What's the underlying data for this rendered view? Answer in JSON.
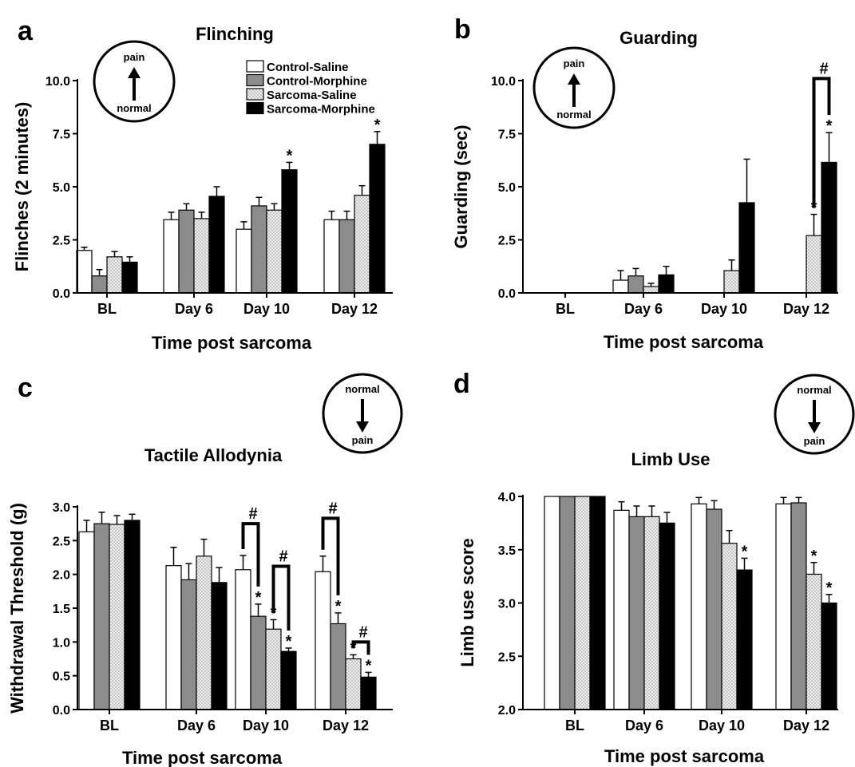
{
  "legend": {
    "position": "top-right of panel a",
    "entries": [
      "Control-Saline",
      "Control-Morphine",
      "Sarcoma-Saline",
      "Sarcoma-Morphine"
    ]
  },
  "series_styles": [
    {
      "name": "Control-Saline",
      "fill": "#ffffff",
      "pattern": "none"
    },
    {
      "name": "Control-Morphine",
      "fill": "#8c8c8c",
      "pattern": "none"
    },
    {
      "name": "Sarcoma-Saline",
      "fill": "#e0e0e0",
      "pattern": "dots"
    },
    {
      "name": "Sarcoma-Morphine",
      "fill": "#000000",
      "pattern": "none"
    }
  ],
  "chart_data": [
    {
      "panel": "a",
      "type": "bar",
      "title": "Flinching",
      "xlabel": "Time post sarcoma",
      "ylabel": "Flinches (2 minutes)",
      "categories": [
        "BL",
        "Day 6",
        "Day 10",
        "Day 12"
      ],
      "ylim": [
        0,
        10
      ],
      "yticks": [
        "0.0",
        "2.5",
        "5.0",
        "7.5",
        "10.0"
      ],
      "ytick_values": [
        0,
        2.5,
        5,
        7.5,
        10
      ],
      "grid": false,
      "indicator": {
        "top": "pain",
        "bottom": "normal",
        "arrow": "up"
      },
      "series": [
        {
          "name": "Control-Saline",
          "values": [
            2.0,
            3.45,
            3.0,
            3.45
          ],
          "errors": [
            0.15,
            0.35,
            0.35,
            0.4
          ]
        },
        {
          "name": "Control-Morphine",
          "values": [
            0.8,
            3.9,
            4.1,
            3.45
          ],
          "errors": [
            0.3,
            0.3,
            0.4,
            0.4
          ]
        },
        {
          "name": "Sarcoma-Saline",
          "values": [
            1.7,
            3.5,
            3.9,
            4.6
          ],
          "errors": [
            0.25,
            0.3,
            0.3,
            0.45
          ]
        },
        {
          "name": "Sarcoma-Morphine",
          "values": [
            1.45,
            4.55,
            5.8,
            7.0
          ],
          "errors": [
            0.25,
            0.45,
            0.35,
            0.6
          ]
        }
      ],
      "annotations": [
        {
          "text": "*",
          "category": 2,
          "series": 3
        },
        {
          "text": "*",
          "category": 3,
          "series": 3
        }
      ],
      "brackets": []
    },
    {
      "panel": "b",
      "type": "bar",
      "title": "Guarding",
      "xlabel": "Time post sarcoma",
      "ylabel": "Guarding (sec)",
      "categories": [
        "BL",
        "Day 6",
        "Day 10",
        "Day 12"
      ],
      "ylim": [
        0,
        10
      ],
      "yticks": [
        "0.0",
        "2.5",
        "5.0",
        "7.5",
        "10.0"
      ],
      "ytick_values": [
        0,
        2.5,
        5,
        7.5,
        10
      ],
      "grid": false,
      "indicator": {
        "top": "pain",
        "bottom": "normal",
        "arrow": "up"
      },
      "series": [
        {
          "name": "Control-Saline",
          "values": [
            0,
            0.6,
            0,
            0
          ],
          "errors": [
            0,
            0.45,
            0,
            0
          ]
        },
        {
          "name": "Control-Morphine",
          "values": [
            0,
            0.8,
            0,
            0
          ],
          "errors": [
            0,
            0.35,
            0,
            0
          ]
        },
        {
          "name": "Sarcoma-Saline",
          "values": [
            0,
            0.3,
            1.05,
            2.7
          ],
          "errors": [
            0,
            0.15,
            0.5,
            1.0
          ]
        },
        {
          "name": "Sarcoma-Morphine",
          "values": [
            0,
            0.85,
            4.25,
            6.15
          ],
          "errors": [
            0,
            0.4,
            2.05,
            1.4
          ]
        }
      ],
      "annotations": [
        {
          "text": "*",
          "category": 3,
          "series": 2
        },
        {
          "text": "*",
          "category": 3,
          "series": 3
        }
      ],
      "brackets": [
        {
          "category": 3,
          "from_series": 2,
          "to_series": 3,
          "level": 10.1,
          "text": "#"
        }
      ]
    },
    {
      "panel": "c",
      "type": "bar",
      "title": "Tactile Allodynia",
      "xlabel": "Time post sarcoma",
      "ylabel": "Withdrawal Threshold  (g)",
      "categories": [
        "BL",
        "Day 6",
        "Day 10",
        "Day 12"
      ],
      "ylim": [
        0,
        3
      ],
      "yticks": [
        "0.0",
        "0.5",
        "1.0",
        "1.5",
        "2.0",
        "2.5",
        "3.0"
      ],
      "ytick_values": [
        0,
        0.5,
        1,
        1.5,
        2,
        2.5,
        3
      ],
      "grid": false,
      "indicator": {
        "top": "normal",
        "bottom": "pain",
        "arrow": "down"
      },
      "series": [
        {
          "name": "Control-Saline",
          "values": [
            2.63,
            2.13,
            2.07,
            2.04
          ],
          "errors": [
            0.17,
            0.27,
            0.21,
            0.23
          ]
        },
        {
          "name": "Control-Morphine",
          "values": [
            2.75,
            1.92,
            1.38,
            1.27
          ],
          "errors": [
            0.17,
            0.24,
            0.18,
            0.16
          ]
        },
        {
          "name": "Sarcoma-Saline",
          "values": [
            2.74,
            2.27,
            1.19,
            0.75
          ],
          "errors": [
            0.13,
            0.25,
            0.14,
            0.06
          ]
        },
        {
          "name": "Sarcoma-Morphine",
          "values": [
            2.8,
            1.88,
            0.86,
            0.48
          ],
          "errors": [
            0.09,
            0.22,
            0.05,
            0.07
          ]
        }
      ],
      "annotations": [
        {
          "text": "*",
          "category": 2,
          "series": 1
        },
        {
          "text": "*",
          "category": 2,
          "series": 2
        },
        {
          "text": "*",
          "category": 2,
          "series": 3
        },
        {
          "text": "*",
          "category": 3,
          "series": 1
        },
        {
          "text": "*",
          "category": 3,
          "series": 2
        },
        {
          "text": "*",
          "category": 3,
          "series": 3
        }
      ],
      "brackets": [
        {
          "category": 2,
          "from_series": 0,
          "to_series": 1,
          "level": 2.75,
          "text": "#"
        },
        {
          "category": 2,
          "from_series": 2,
          "to_series": 3,
          "level": 2.12,
          "text": "#"
        },
        {
          "category": 3,
          "from_series": 0,
          "to_series": 1,
          "level": 2.83,
          "text": "#"
        },
        {
          "category": 3,
          "from_series": 2,
          "to_series": 3,
          "level": 1.0,
          "text": "#"
        }
      ]
    },
    {
      "panel": "d",
      "type": "bar",
      "title": "Limb Use",
      "xlabel": "Time post sarcoma",
      "ylabel": "Limb use score",
      "categories": [
        "BL",
        "Day 6",
        "Day 10",
        "Day 12"
      ],
      "ylim": [
        2,
        4
      ],
      "yticks": [
        "2.0",
        "2.5",
        "3.0",
        "3.5",
        "4.0"
      ],
      "ytick_values": [
        2,
        2.5,
        3,
        3.5,
        4
      ],
      "grid": false,
      "indicator": {
        "top": "normal",
        "bottom": "pain",
        "arrow": "down"
      },
      "series": [
        {
          "name": "Control-Saline",
          "values": [
            4.0,
            3.87,
            3.93,
            3.93
          ],
          "errors": [
            0,
            0.08,
            0.06,
            0.06
          ]
        },
        {
          "name": "Control-Morphine",
          "values": [
            4.0,
            3.81,
            3.88,
            3.94
          ],
          "errors": [
            0,
            0.1,
            0.08,
            0.05
          ]
        },
        {
          "name": "Sarcoma-Saline",
          "values": [
            4.0,
            3.81,
            3.56,
            3.27
          ],
          "errors": [
            0,
            0.1,
            0.12,
            0.11
          ]
        },
        {
          "name": "Sarcoma-Morphine",
          "values": [
            4.0,
            3.75,
            3.31,
            3.0
          ],
          "errors": [
            0,
            0.1,
            0.11,
            0.08
          ]
        }
      ],
      "annotations": [
        {
          "text": "*",
          "category": 2,
          "series": 3
        },
        {
          "text": "*",
          "category": 3,
          "series": 2
        },
        {
          "text": "*",
          "category": 3,
          "series": 3
        }
      ],
      "brackets": []
    }
  ]
}
